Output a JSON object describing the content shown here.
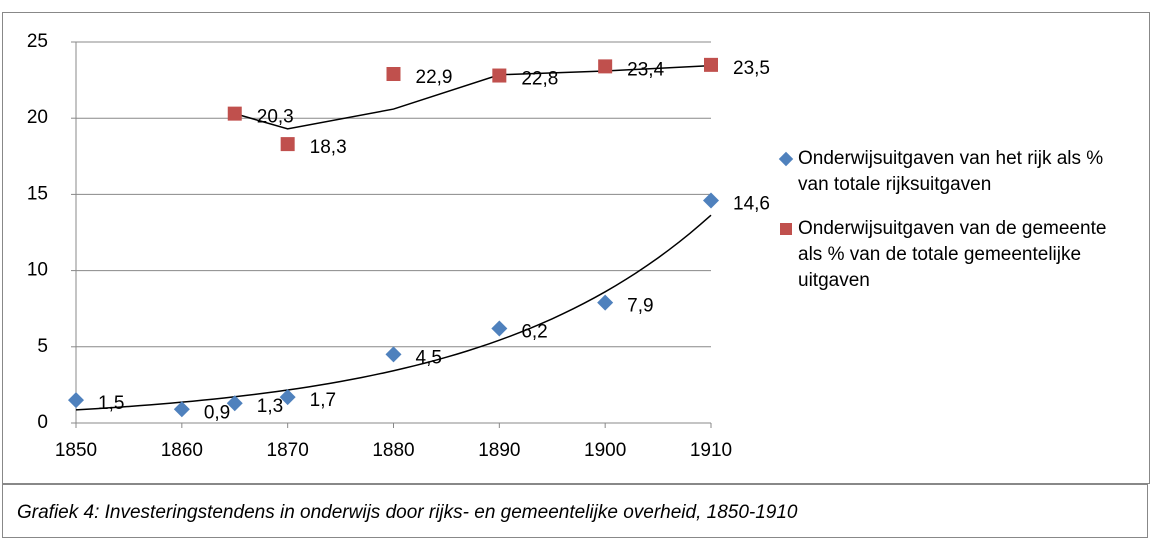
{
  "chart_data": {
    "type": "scatter",
    "caption": "Grafiek 4: Investeringstendens in onderwijs door rijks- en gemeentelijke overheid, 1850-1910",
    "series": [
      {
        "name": "Onderwijsuitgaven van het rijk als % van totale rijksuitgaven",
        "color": "#4f81bd",
        "marker": "diamond",
        "trendline": "exponential",
        "x": [
          1850,
          1860,
          1865,
          1870,
          1880,
          1890,
          1900,
          1910
        ],
        "values": [
          1.5,
          0.9,
          1.3,
          1.7,
          4.5,
          6.2,
          7.9,
          14.6
        ],
        "value_labels": [
          "1,5",
          "0,9",
          "1,3",
          "1,7",
          "4,5",
          "6,2",
          "7,9",
          "14,6"
        ]
      },
      {
        "name": "Onderwijsuitgaven van de gemeente als % van de totale gemeentelijke uitgaven",
        "color": "#c0504d",
        "marker": "square",
        "trendline": "moving-average",
        "x": [
          1865,
          1870,
          1880,
          1890,
          1900,
          1910
        ],
        "values": [
          20.3,
          18.3,
          22.9,
          22.8,
          23.4,
          23.5
        ],
        "value_labels": [
          "20,3",
          "18,3",
          "22,9",
          "22,8",
          "23,4",
          "23,5"
        ]
      }
    ],
    "xlim": [
      1850,
      1910
    ],
    "xticks": [
      1850,
      1860,
      1870,
      1880,
      1890,
      1900,
      1910
    ],
    "ylim": [
      0,
      25
    ],
    "yticks": [
      0,
      5,
      10,
      15,
      20,
      25
    ],
    "grid": true,
    "legend": "right"
  }
}
